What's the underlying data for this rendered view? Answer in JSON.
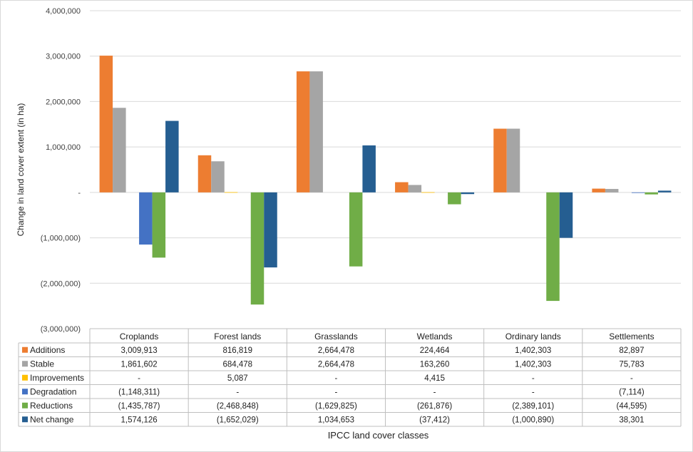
{
  "chart_data": {
    "type": "bar",
    "title": "",
    "ylabel": "Change in land cover extent (in ha)",
    "xlabel": "IPCC land cover classes",
    "ylim": [
      -3000000,
      4000000
    ],
    "yticks": [
      4000000,
      3000000,
      2000000,
      1000000,
      0,
      -1000000,
      -2000000,
      -3000000
    ],
    "ytick_labels": [
      "4,000,000",
      "3,000,000",
      "2,000,000",
      "1,000,000",
      "-",
      "(1,000,000)",
      "(2,000,000)",
      "(3,000,000)"
    ],
    "grid": true,
    "legend": "data-table",
    "categories": [
      "Croplands",
      "Forest lands",
      "Grasslands",
      "Wetlands",
      "Ordinary lands",
      "Settlements"
    ],
    "series": [
      {
        "name": "Additions",
        "color": "#ED7D31",
        "values": [
          3009913,
          816819,
          2664478,
          224464,
          1402303,
          82897
        ],
        "labels": [
          "3,009,913",
          "816,819",
          "2,664,478",
          "224,464",
          "1,402,303",
          "82,897"
        ]
      },
      {
        "name": "Stable",
        "color": "#A5A5A5",
        "values": [
          1861602,
          684478,
          2664478,
          163260,
          1402303,
          75783
        ],
        "labels": [
          "1,861,602",
          "684,478",
          "2,664,478",
          "163,260",
          "1,402,303",
          "75,783"
        ]
      },
      {
        "name": "Improvements",
        "color": "#FFC000",
        "values": [
          0,
          5087,
          0,
          4415,
          0,
          0
        ],
        "labels": [
          "-",
          "5,087",
          "-",
          "4,415",
          "-",
          "-"
        ]
      },
      {
        "name": "Degradation",
        "color": "#4472C4",
        "values": [
          -1148311,
          0,
          0,
          0,
          0,
          -7114
        ],
        "labels": [
          "(1,148,311)",
          "-",
          "-",
          "-",
          "-",
          "(7,114)"
        ]
      },
      {
        "name": "Reductions",
        "color": "#70AD47",
        "values": [
          -1435787,
          -2468848,
          -1629825,
          -261876,
          -2389101,
          -44595
        ],
        "labels": [
          "(1,435,787)",
          "(2,468,848)",
          "(1,629,825)",
          "(261,876)",
          "(2,389,101)",
          "(44,595)"
        ]
      },
      {
        "name": "Net change",
        "color": "#255E91",
        "values": [
          1574126,
          -1652029,
          1034653,
          -37412,
          -1000890,
          38301
        ],
        "labels": [
          "1,574,126",
          "(1,652,029)",
          "1,034,653",
          "(37,412)",
          "(1,000,890)",
          "38,301"
        ]
      }
    ]
  }
}
